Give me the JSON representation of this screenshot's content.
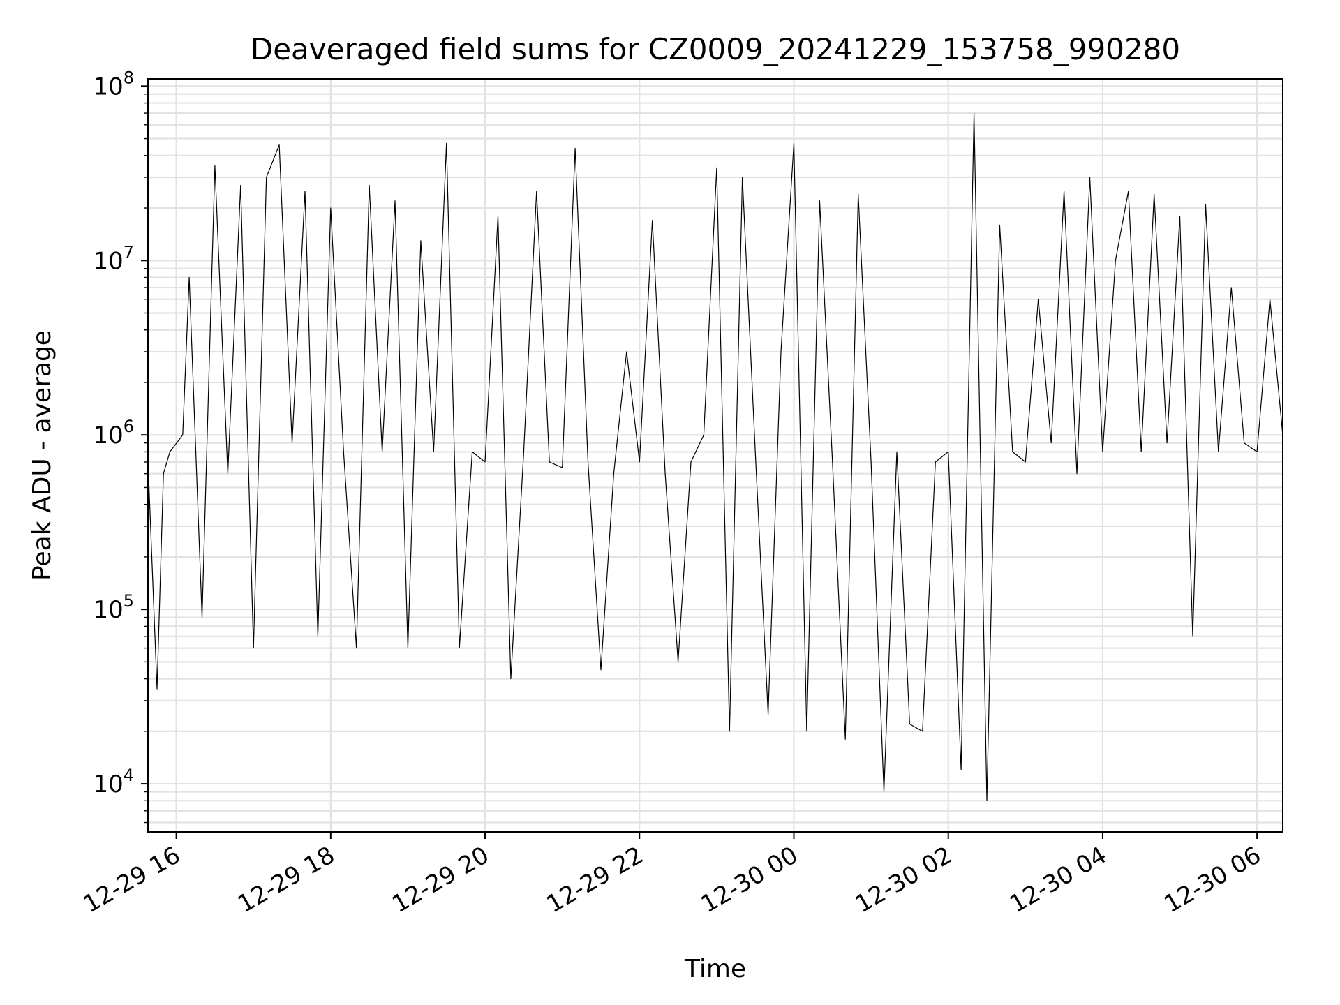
{
  "chart_data": {
    "type": "line",
    "title": "Deaveraged field sums for CZ0009_20241229_153758_990280",
    "xlabel": "Time",
    "ylabel": "Peak ADU - average",
    "y_scale": "log",
    "ylim": [
      5300,
      110000000
    ],
    "xlim": [
      "2024-12-29 15:37:58",
      "2024-12-30 06:20:00"
    ],
    "grid": true,
    "legend": "none",
    "line_color": "#000000",
    "x_tick_labels": [
      "12-29 16",
      "12-29 18",
      "12-29 20",
      "12-29 22",
      "12-30 00",
      "12-30 02",
      "12-30 04",
      "12-30 06"
    ],
    "x_tick_values": [
      "2024-12-29 16:00",
      "2024-12-29 18:00",
      "2024-12-29 20:00",
      "2024-12-29 22:00",
      "2024-12-30 00:00",
      "2024-12-30 02:00",
      "2024-12-30 04:00",
      "2024-12-30 06:00"
    ],
    "y_tick_values": [
      10000,
      100000,
      1000000,
      10000000,
      100000000
    ],
    "y_tick_labels": [
      {
        "base": "10",
        "exp": "4"
      },
      {
        "base": "10",
        "exp": "5"
      },
      {
        "base": "10",
        "exp": "6"
      },
      {
        "base": "10",
        "exp": "7"
      },
      {
        "base": "10",
        "exp": "8"
      }
    ],
    "series": [
      {
        "x": [
          "2024-12-29 15:38",
          "2024-12-29 15:45",
          "2024-12-29 15:50",
          "2024-12-29 15:55",
          "2024-12-29 16:05",
          "2024-12-29 16:10",
          "2024-12-29 16:20",
          "2024-12-29 16:30",
          "2024-12-29 16:40",
          "2024-12-29 16:50",
          "2024-12-29 17:00",
          "2024-12-29 17:10",
          "2024-12-29 17:20",
          "2024-12-29 17:30",
          "2024-12-29 17:40",
          "2024-12-29 17:50",
          "2024-12-29 18:00",
          "2024-12-29 18:10",
          "2024-12-29 18:20",
          "2024-12-29 18:30",
          "2024-12-29 18:40",
          "2024-12-29 18:50",
          "2024-12-29 19:00",
          "2024-12-29 19:10",
          "2024-12-29 19:20",
          "2024-12-29 19:30",
          "2024-12-29 19:40",
          "2024-12-29 19:50",
          "2024-12-29 20:00",
          "2024-12-29 20:10",
          "2024-12-29 20:20",
          "2024-12-29 20:30",
          "2024-12-29 20:40",
          "2024-12-29 20:50",
          "2024-12-29 21:00",
          "2024-12-29 21:10",
          "2024-12-29 21:20",
          "2024-12-29 21:30",
          "2024-12-29 21:40",
          "2024-12-29 21:50",
          "2024-12-29 22:00",
          "2024-12-29 22:10",
          "2024-12-29 22:20",
          "2024-12-29 22:30",
          "2024-12-29 22:40",
          "2024-12-29 22:50",
          "2024-12-29 23:00",
          "2024-12-29 23:10",
          "2024-12-29 23:20",
          "2024-12-29 23:30",
          "2024-12-29 23:40",
          "2024-12-29 23:50",
          "2024-12-30 00:00",
          "2024-12-30 00:10",
          "2024-12-30 00:20",
          "2024-12-30 00:30",
          "2024-12-30 00:40",
          "2024-12-30 00:50",
          "2024-12-30 01:00",
          "2024-12-30 01:10",
          "2024-12-30 01:20",
          "2024-12-30 01:30",
          "2024-12-30 01:40",
          "2024-12-30 01:50",
          "2024-12-30 02:00",
          "2024-12-30 02:10",
          "2024-12-30 02:20",
          "2024-12-30 02:30",
          "2024-12-30 02:40",
          "2024-12-30 02:50",
          "2024-12-30 03:00",
          "2024-12-30 03:10",
          "2024-12-30 03:20",
          "2024-12-30 03:30",
          "2024-12-30 03:40",
          "2024-12-30 03:50",
          "2024-12-30 04:00",
          "2024-12-30 04:10",
          "2024-12-30 04:20",
          "2024-12-30 04:30",
          "2024-12-30 04:40",
          "2024-12-30 04:50",
          "2024-12-30 05:00",
          "2024-12-30 05:10",
          "2024-12-30 05:20",
          "2024-12-30 05:30",
          "2024-12-30 05:40",
          "2024-12-30 05:50",
          "2024-12-30 06:00",
          "2024-12-30 06:10",
          "2024-12-30 06:20"
        ],
        "y": [
          700000,
          35000,
          600000,
          800000,
          1000000,
          8000000,
          90000,
          35000000,
          600000,
          27000000,
          60000,
          30000000,
          46000000,
          900000,
          25000000,
          70000,
          20000000,
          800000,
          60000,
          27000000,
          800000,
          22000000,
          60000,
          13000000,
          800000,
          47000000,
          60000,
          800000,
          700000,
          18000000,
          40000,
          800000,
          25000000,
          700000,
          650000,
          44000000,
          700000,
          45000,
          600000,
          3000000,
          700000,
          17000000,
          600000,
          50000,
          700000,
          1000000,
          34000000,
          20000,
          30000000,
          800000,
          25000,
          3000000,
          47000000,
          20000,
          22000000,
          700000,
          18000,
          24000000,
          700000,
          9000,
          800000,
          22000,
          20000,
          700000,
          800000,
          12000,
          70000000,
          8000,
          16000000,
          800000,
          700000,
          6000000,
          900000,
          25000000,
          600000,
          30000000,
          800000,
          10000000,
          25000000,
          800000,
          24000000,
          900000,
          18000000,
          70000,
          21000000,
          800000,
          7000000,
          900000,
          800000,
          6000000,
          1000000
        ]
      }
    ]
  }
}
